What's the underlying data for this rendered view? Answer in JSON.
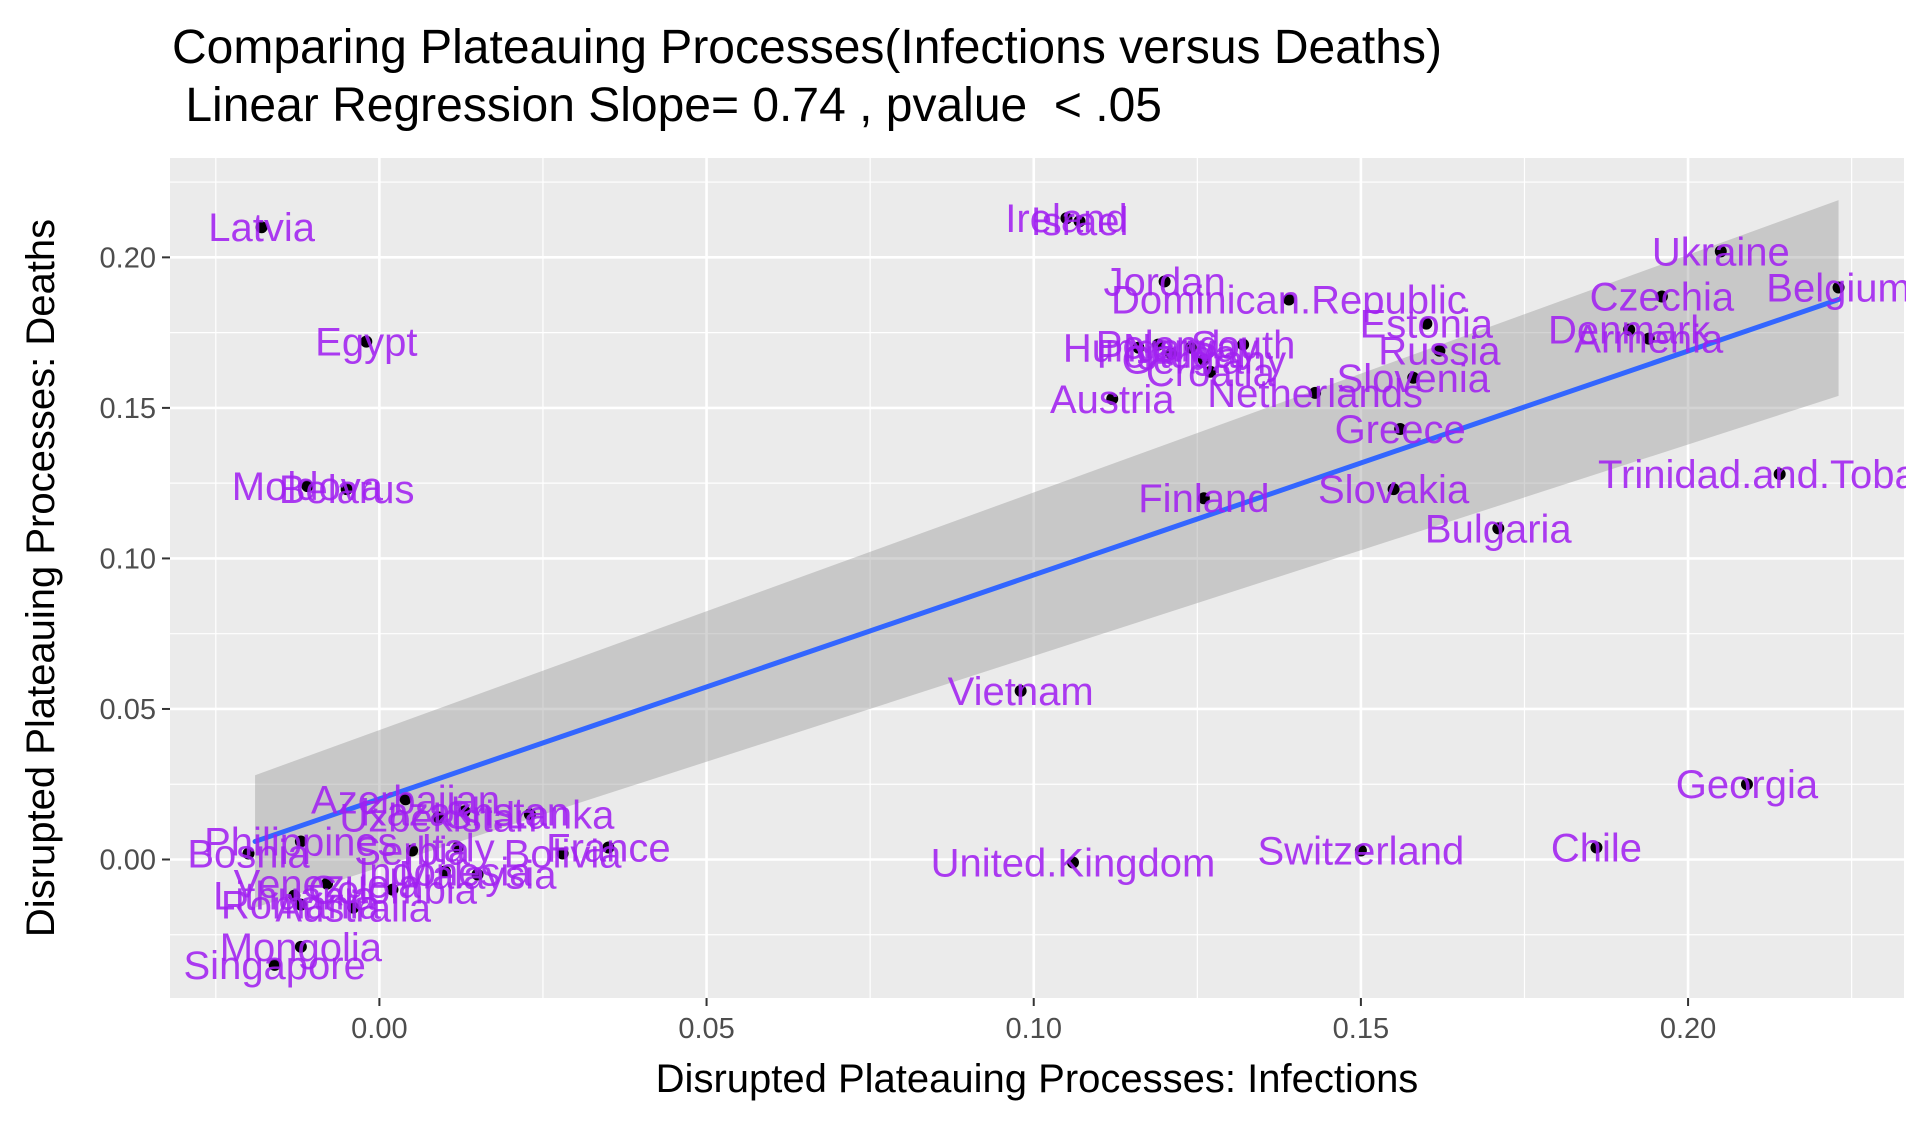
{
  "chart_data": {
    "type": "scatter",
    "title": "Comparing Plateauing Processes(Infections versus Deaths)",
    "subtitle": " Linear Regression Slope= 0.74 , pvalue  < .05",
    "xlabel": "Disrupted Plateauing Processes: Infections",
    "ylabel": "Disrupted Plateauing Processes: Deaths",
    "xlim": [
      -0.032,
      0.233
    ],
    "ylim": [
      -0.046,
      0.233
    ],
    "x_ticks": [
      0.0,
      0.05,
      0.1,
      0.15,
      0.2
    ],
    "x_tick_labels": [
      "0.00",
      "0.05",
      "0.10",
      "0.15",
      "0.20"
    ],
    "y_ticks": [
      0.0,
      0.05,
      0.1,
      0.15,
      0.2
    ],
    "y_tick_labels": [
      "0.00",
      "0.05",
      "0.10",
      "0.15",
      "0.20"
    ],
    "grid": true,
    "colors": {
      "panel_background": "#EBEBEB",
      "grid": "#FFFFFF",
      "point": "#000000",
      "label": "#A020F0",
      "regression_line": "#3366FF",
      "confidence_band": "#999999"
    },
    "regression": {
      "x": [
        -0.019,
        0.223
      ],
      "y": [
        0.006,
        0.186
      ],
      "ci_upper": [
        0.028,
        0.219
      ],
      "ci_lower": [
        -0.016,
        0.154
      ]
    },
    "points": [
      {
        "label": "Latvia",
        "x": -0.018,
        "y": 0.21
      },
      {
        "label": "Egypt",
        "x": -0.002,
        "y": 0.172
      },
      {
        "label": "Moldova",
        "x": -0.011,
        "y": 0.124
      },
      {
        "label": "Belarus",
        "x": -0.005,
        "y": 0.123
      },
      {
        "label": "Israel",
        "x": 0.107,
        "y": 0.212
      },
      {
        "label": "Ireland",
        "x": 0.105,
        "y": 0.213
      },
      {
        "label": "Jordan",
        "x": 0.12,
        "y": 0.192
      },
      {
        "label": "Dominican.Republic",
        "x": 0.139,
        "y": 0.186
      },
      {
        "label": "Estonia",
        "x": 0.16,
        "y": 0.178
      },
      {
        "label": "Hungary",
        "x": 0.116,
        "y": 0.17
      },
      {
        "label": "Poland",
        "x": 0.119,
        "y": 0.171
      },
      {
        "label": "Norway",
        "x": 0.124,
        "y": 0.17
      },
      {
        "label": "Portugal",
        "x": 0.121,
        "y": 0.168
      },
      {
        "label": "South",
        "x": 0.132,
        "y": 0.171
      },
      {
        "label": "Russia",
        "x": 0.162,
        "y": 0.169
      },
      {
        "label": "Germany",
        "x": 0.126,
        "y": 0.166
      },
      {
        "label": "Croatia",
        "x": 0.127,
        "y": 0.162
      },
      {
        "label": "Slovenia",
        "x": 0.158,
        "y": 0.16
      },
      {
        "label": "Netherlands",
        "x": 0.143,
        "y": 0.155
      },
      {
        "label": "Austria",
        "x": 0.112,
        "y": 0.153
      },
      {
        "label": "Greece",
        "x": 0.156,
        "y": 0.143
      },
      {
        "label": "Slovakia",
        "x": 0.155,
        "y": 0.123
      },
      {
        "label": "Finland",
        "x": 0.126,
        "y": 0.12
      },
      {
        "label": "Bulgaria",
        "x": 0.171,
        "y": 0.11
      },
      {
        "label": "Ukraine",
        "x": 0.205,
        "y": 0.202
      },
      {
        "label": "Czechia",
        "x": 0.196,
        "y": 0.187
      },
      {
        "label": "Belgium",
        "x": 0.223,
        "y": 0.19
      },
      {
        "label": "Denmark",
        "x": 0.191,
        "y": 0.176
      },
      {
        "label": "Armenia",
        "x": 0.194,
        "y": 0.173
      },
      {
        "label": "Trinidad.and.Tobago",
        "x": 0.214,
        "y": 0.128
      },
      {
        "label": "Vietnam",
        "x": 0.098,
        "y": 0.056
      },
      {
        "label": "Georgia",
        "x": 0.209,
        "y": 0.025
      },
      {
        "label": "Switzerland",
        "x": 0.15,
        "y": 0.003
      },
      {
        "label": "Chile",
        "x": 0.186,
        "y": 0.004
      },
      {
        "label": "United.Kingdom",
        "x": 0.106,
        "y": -0.001
      },
      {
        "label": "Azerbaijan",
        "x": 0.004,
        "y": 0.02
      },
      {
        "label": "Sri.Lanka",
        "x": 0.023,
        "y": 0.015
      },
      {
        "label": "Kazakhstan",
        "x": 0.013,
        "y": 0.016
      },
      {
        "label": "Uzbekistan",
        "x": 0.009,
        "y": 0.014
      },
      {
        "label": "Philippines",
        "x": -0.012,
        "y": 0.006
      },
      {
        "label": "France",
        "x": 0.035,
        "y": 0.004
      },
      {
        "label": "Bolivia",
        "x": 0.028,
        "y": 0.002
      },
      {
        "label": "Bosnia",
        "x": -0.02,
        "y": 0.002
      },
      {
        "label": "Serbia",
        "x": 0.005,
        "y": 0.003
      },
      {
        "label": "Italy",
        "x": 0.012,
        "y": 0.004
      },
      {
        "label": "Malaysia",
        "x": 0.015,
        "y": -0.005
      },
      {
        "label": "Indonesia",
        "x": 0.01,
        "y": -0.004
      },
      {
        "label": "Lithuania",
        "x": -0.013,
        "y": -0.012
      },
      {
        "label": "Venezuela",
        "x": -0.008,
        "y": -0.008
      },
      {
        "label": "Colombia",
        "x": 0.002,
        "y": -0.01
      },
      {
        "label": "Romania",
        "x": -0.012,
        "y": -0.015
      },
      {
        "label": "Australia",
        "x": -0.004,
        "y": -0.016
      },
      {
        "label": "Mongolia",
        "x": -0.012,
        "y": -0.029
      },
      {
        "label": "Singapore",
        "x": -0.016,
        "y": -0.035
      }
    ]
  }
}
